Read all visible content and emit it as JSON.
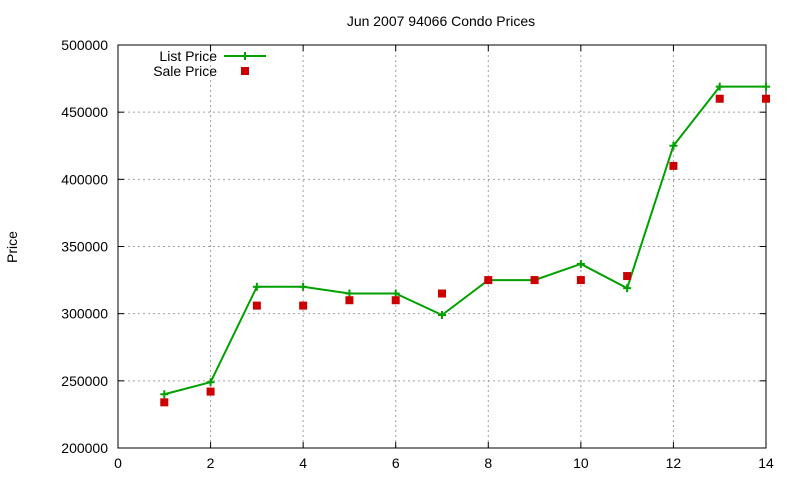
{
  "chart_data": {
    "type": "line",
    "title": "Jun 2007 94066 Condo Prices",
    "xlabel": "",
    "ylabel": "Price",
    "xlim": [
      0,
      14
    ],
    "ylim": [
      200000,
      500000
    ],
    "x_ticks": [
      0,
      2,
      4,
      6,
      8,
      10,
      12,
      14
    ],
    "y_ticks": [
      200000,
      250000,
      300000,
      350000,
      400000,
      450000,
      500000
    ],
    "grid": true,
    "legend_position": "top-left",
    "series": [
      {
        "name": "List Price",
        "style": "line-with-plus-markers",
        "color": "#00a000",
        "x": [
          1,
          2,
          3,
          4,
          5,
          6,
          7,
          8,
          9,
          10,
          11,
          12,
          13,
          14
        ],
        "y": [
          240000,
          249000,
          320000,
          320000,
          315000,
          315000,
          299000,
          325000,
          325000,
          337000,
          319000,
          425000,
          469000,
          469000
        ]
      },
      {
        "name": "Sale Price",
        "style": "square-points",
        "color": "#cc0000",
        "x": [
          1,
          2,
          3,
          4,
          5,
          6,
          7,
          8,
          9,
          10,
          11,
          12,
          13,
          14
        ],
        "y": [
          234000,
          242000,
          306000,
          306000,
          310000,
          310000,
          315000,
          325000,
          325000,
          325000,
          328000,
          410000,
          460000,
          460000
        ]
      }
    ]
  }
}
